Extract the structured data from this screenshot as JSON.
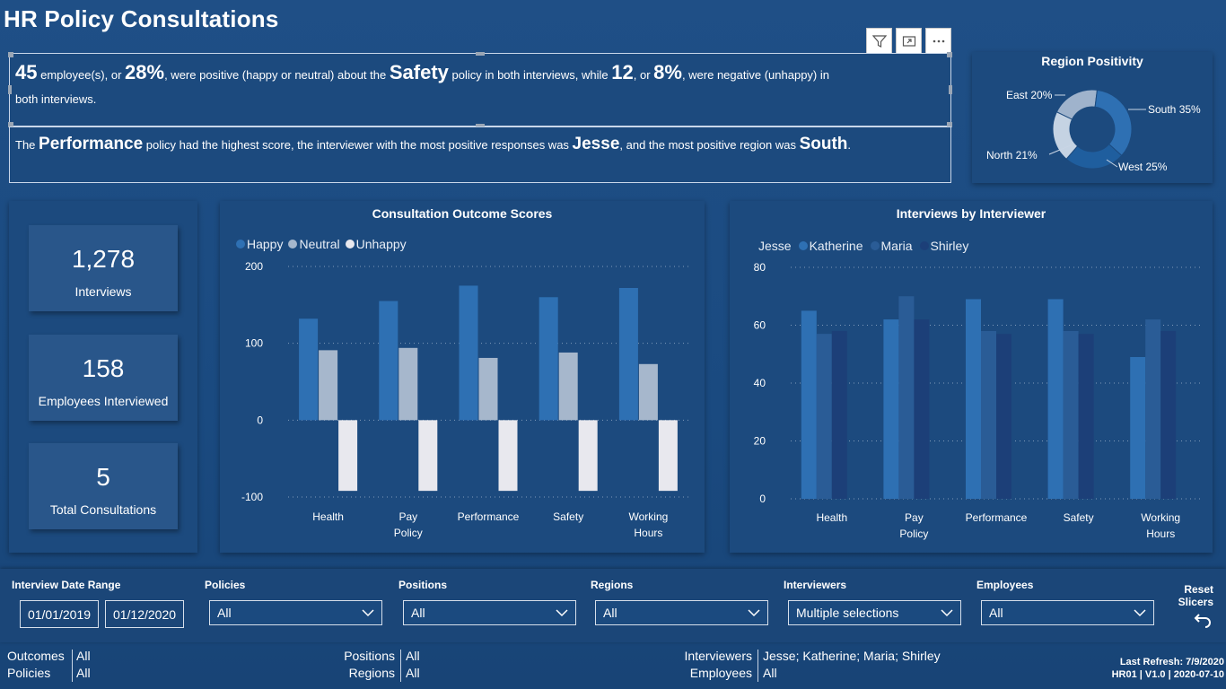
{
  "header": {
    "title": "HR Policy Consultations"
  },
  "narrative": {
    "line1": {
      "n1": "45",
      "t1": " employee(s), or ",
      "p1": "28%",
      "t2": ", were positive (happy or neutral) about the ",
      "policy": "Safety",
      "t3": " policy in both interviews, while ",
      "n2": "12",
      "t4": ", or ",
      "p2": "8%",
      "t5": ", were negative (unhappy) in",
      "t6": "both interviews."
    },
    "line2": {
      "t1": "The ",
      "policy": "Performance",
      "t2": " policy had the highest score, the interviewer with the most positive responses was ",
      "interviewer": "Jesse",
      "t3": ", and the most positive region was ",
      "region": "South",
      "t4": "."
    }
  },
  "toolbar": {
    "filter_icon": "filter-icon",
    "focus_icon": "focus-mode-icon",
    "more_icon": "more-options-icon"
  },
  "region_positivity": {
    "title": "Region Positivity",
    "slices": [
      {
        "label": "East 20%",
        "value": 20,
        "color": "#9fb3cc"
      },
      {
        "label": "South 35%",
        "value": 35,
        "color": "#2e70b3"
      },
      {
        "label": "West 25%",
        "value": 25,
        "color": "#1f5e9e"
      },
      {
        "label": "North 21%",
        "value": 21,
        "color": "#c5d3e3"
      }
    ]
  },
  "kpis": [
    {
      "value": "1,278",
      "label": "Interviews"
    },
    {
      "value": "158",
      "label": "Employees Interviewed"
    },
    {
      "value": "5",
      "label": "Total Consultations"
    }
  ],
  "chart_data": [
    {
      "type": "bar",
      "title": "Consultation Outcome Scores",
      "categories": [
        "Health",
        "Pay Policy",
        "Performance",
        "Safety",
        "Working Hours"
      ],
      "series": [
        {
          "name": "Happy",
          "color": "#2e70b3",
          "values": [
            132,
            155,
            175,
            160,
            172
          ]
        },
        {
          "name": "Neutral",
          "color": "#a6b7cc",
          "values": [
            91,
            94,
            81,
            88,
            73
          ]
        },
        {
          "name": "Unhappy",
          "color": "#e8e8ee",
          "values": [
            -92,
            -92,
            -92,
            -92,
            -92
          ]
        }
      ],
      "ylim": [
        -100,
        200
      ],
      "yticks": [
        "200",
        "100",
        "0",
        "-100"
      ],
      "grid": true,
      "legend": "top-left"
    },
    {
      "type": "bar",
      "title": "Interviews by Interviewer",
      "categories": [
        "Health",
        "Pay Policy",
        "Performance",
        "Safety",
        "Working Hours"
      ],
      "series": [
        {
          "name": "Jesse",
          "color": "#2e70b3",
          "values": [
            65,
            62,
            69,
            69,
            49
          ]
        },
        {
          "name": "Katherine",
          "color": "#2a5c96",
          "values": [
            57,
            70,
            58,
            58,
            62
          ]
        },
        {
          "name": "Maria",
          "color": "#1c3f78",
          "values": [
            58,
            62,
            57,
            57,
            58
          ]
        },
        {
          "name": "Shirley",
          "color": "#1a3464",
          "values": [
            0,
            0,
            0,
            0,
            0
          ]
        }
      ],
      "ylim": [
        0,
        80
      ],
      "yticks": [
        "80",
        "60",
        "40",
        "20",
        "0"
      ],
      "grid": true,
      "legend": "top-left"
    }
  ],
  "slicers": {
    "date_range": {
      "label": "Interview Date Range",
      "start": "01/01/2019",
      "end": "01/12/2020"
    },
    "policies": {
      "label": "Policies",
      "value": "All"
    },
    "positions": {
      "label": "Positions",
      "value": "All"
    },
    "regions": {
      "label": "Regions",
      "value": "All"
    },
    "interviewers": {
      "label": "Interviewers",
      "value": "Multiple selections"
    },
    "employees": {
      "label": "Employees",
      "value": "All"
    },
    "reset": {
      "line1": "Reset",
      "line2": "Slicers"
    }
  },
  "footer": {
    "outcomes_label": "Outcomes",
    "outcomes_value": "All",
    "policies_label": "Policies",
    "policies_value": "All",
    "positions_label": "Positions",
    "positions_value": "All",
    "regions_label": "Regions",
    "regions_value": "All",
    "interviewers_label": "Interviewers",
    "interviewers_value": "Jesse; Katherine; Maria; Shirley",
    "employees_label": "Employees",
    "employees_value": "All",
    "refresh": "Last Refresh: 7/9/2020",
    "version": "HR01 | V1.0 | 2020-07-10"
  }
}
